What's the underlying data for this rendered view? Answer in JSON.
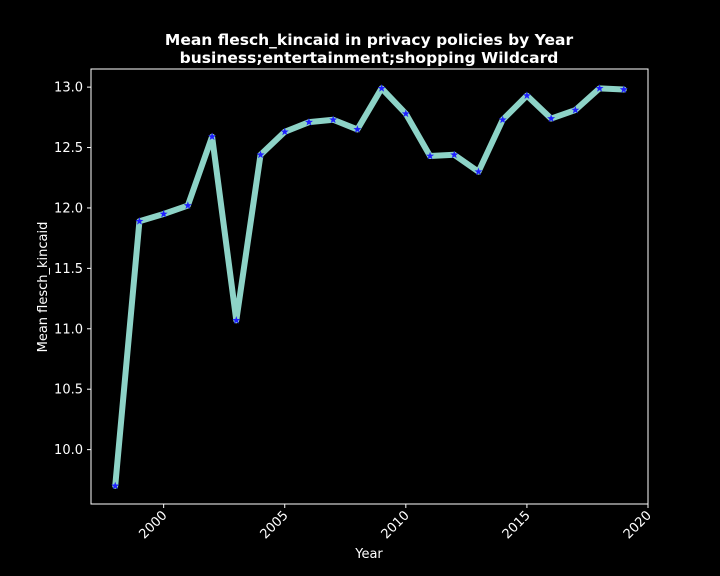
{
  "chart_data": {
    "type": "line",
    "title": "Mean flesch_kincaid in privacy policies by Year",
    "subtitle": "business;entertainment;shopping Wildcard",
    "xlabel": "Year",
    "ylabel": "Mean flesch_kincaid",
    "xlim": [
      1997,
      2020
    ],
    "ylim": [
      9.55,
      13.15
    ],
    "xticks": [
      2000,
      2005,
      2010,
      2015,
      2020
    ],
    "yticks": [
      10.0,
      10.5,
      11.0,
      11.5,
      12.0,
      12.5,
      13.0
    ],
    "grid": false,
    "line_color": "#8dd3c7",
    "marker_color": "#1f1fff",
    "marker": "star",
    "series": [
      {
        "x": [
          1998,
          1999,
          2000,
          2001,
          2002,
          2003,
          2004,
          2005,
          2006,
          2007,
          2008,
          2009,
          2010,
          2011,
          2012,
          2013,
          2014,
          2015,
          2016,
          2017,
          2018,
          2019
        ],
        "values": [
          9.7,
          11.89,
          11.95,
          12.02,
          12.59,
          11.07,
          12.44,
          12.63,
          12.71,
          12.73,
          12.65,
          12.99,
          12.78,
          12.43,
          12.44,
          12.3,
          12.73,
          12.93,
          12.74,
          12.81,
          12.99,
          12.98
        ]
      }
    ]
  }
}
